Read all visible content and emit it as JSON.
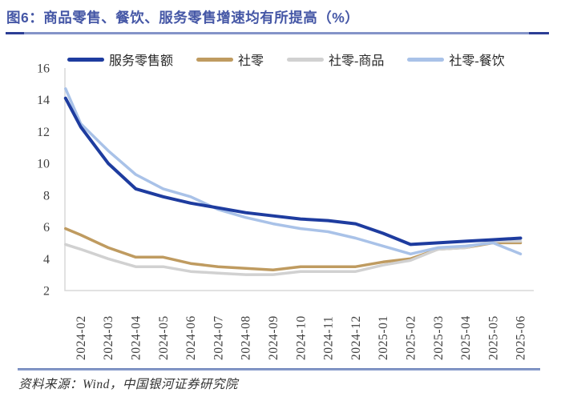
{
  "title": "图6：商品零售、餐饮、服务零售增速均有所提高（%）",
  "source": {
    "text": "资料来源：Wind，中国银河证券研究院"
  },
  "colors": {
    "title_text": "#4557a6",
    "rule_dark": "#2b3d95",
    "rule_light": "#8494c8",
    "axis_line": "#d9d9d9",
    "tick_text": "#404040"
  },
  "chart_data": {
    "type": "line",
    "title": "商品零售、餐饮、服务零售增速均有所提高（%）",
    "xlabel": "",
    "ylabel": "",
    "ylim": [
      2,
      16
    ],
    "yticks": [
      2,
      4,
      6,
      8,
      10,
      12,
      14,
      16
    ],
    "grid": false,
    "legend_position": "top",
    "x": [
      "2024-02",
      "2024-03",
      "2024-04",
      "2024-05",
      "2024-06",
      "2024-07",
      "2024-08",
      "2024-09",
      "2024-10",
      "2024-11",
      "2024-12",
      "2025-01",
      "2025-02",
      "2025-03",
      "2025-04",
      "2025-05",
      "2025-06"
    ],
    "series": [
      {
        "name": "服务零售额",
        "color": "#1e3c9f",
        "line_width": 4,
        "axis_start": 14.1,
        "values": [
          12.3,
          10.0,
          8.4,
          7.9,
          7.5,
          7.2,
          6.9,
          6.7,
          6.5,
          6.4,
          6.2,
          5.6,
          4.9,
          5.0,
          5.1,
          5.2,
          5.3
        ]
      },
      {
        "name": "社零",
        "color": "#bf9b60",
        "line_width": 3.5,
        "axis_start": 5.9,
        "values": [
          5.5,
          4.7,
          4.1,
          4.1,
          3.7,
          3.5,
          3.4,
          3.3,
          3.5,
          3.5,
          3.5,
          3.8,
          4.0,
          4.6,
          4.7,
          5.0,
          5.0
        ]
      },
      {
        "name": "社零-商品",
        "color": "#d1d1d1",
        "line_width": 3.5,
        "axis_start": 4.9,
        "values": [
          4.6,
          4.0,
          3.5,
          3.5,
          3.2,
          3.1,
          3.0,
          3.0,
          3.2,
          3.2,
          3.2,
          3.6,
          3.9,
          4.6,
          4.7,
          5.1,
          5.1
        ]
      },
      {
        "name": "社零-餐饮",
        "color": "#a9c2e8",
        "line_width": 3.5,
        "axis_start": 14.7,
        "values": [
          12.5,
          10.8,
          9.3,
          8.4,
          7.9,
          7.1,
          6.6,
          6.2,
          5.9,
          5.7,
          5.3,
          4.8,
          4.3,
          4.7,
          4.8,
          5.0,
          4.3
        ]
      }
    ]
  }
}
